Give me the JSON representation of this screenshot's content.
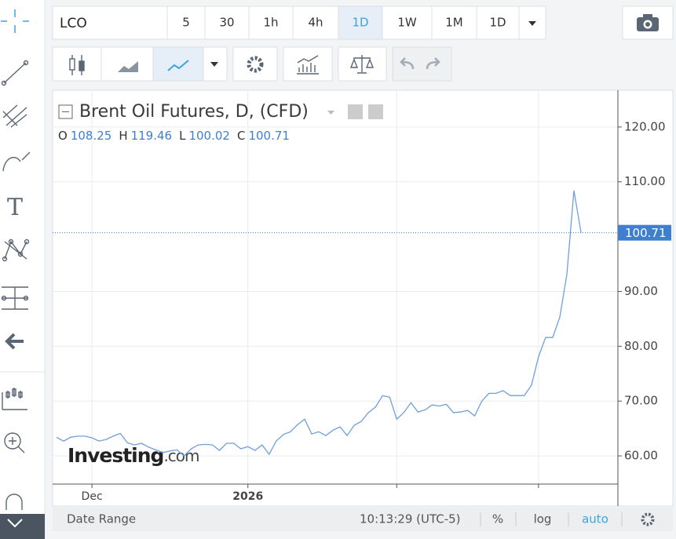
{
  "toolbar": {
    "symbol": "LCO",
    "intervals": [
      "5",
      "30",
      "1h",
      "4h",
      "1D",
      "1W",
      "1M",
      "1D"
    ],
    "active_interval": "1D"
  },
  "chart_data": {
    "type": "line",
    "title": "Brent Oil Futures, D, (CFD)",
    "ohlc": [
      {
        "label": "O",
        "value": 108.25
      },
      {
        "label": "H",
        "value": 119.46
      },
      {
        "label": "L",
        "value": 100.02
      },
      {
        "label": "C",
        "value": 100.71
      }
    ],
    "values": [
      63.4,
      62.7,
      63.4,
      63.6,
      63.6,
      63.3,
      62.7,
      63.0,
      63.6,
      64.1,
      62.4,
      62.0,
      62.3,
      61.6,
      61.1,
      60.6,
      60.9,
      61.1,
      60.0,
      61.3,
      62.0,
      62.1,
      62.0,
      61.0,
      62.3,
      62.3,
      61.3,
      61.7,
      61.0,
      62.0,
      60.3,
      62.7,
      63.9,
      64.4,
      65.7,
      66.7,
      64.0,
      64.4,
      63.7,
      64.7,
      65.3,
      63.7,
      65.6,
      66.3,
      67.9,
      68.9,
      71.0,
      70.7,
      66.7,
      67.9,
      69.7,
      68.0,
      68.4,
      69.3,
      69.1,
      69.4,
      67.9,
      68.0,
      68.3,
      67.3,
      70.0,
      71.4,
      71.4,
      71.9,
      71.0,
      71.0,
      71.0,
      72.9,
      78.1,
      81.6,
      81.6,
      85.3,
      93.1,
      108.4,
      100.71
    ],
    "color": "#6f9fdc",
    "last_price": 100.71,
    "ylim": [
      54.86,
      126.71
    ],
    "yticks": [
      {
        "value": 60,
        "label": "60.00"
      },
      {
        "value": 70,
        "label": "70.00"
      },
      {
        "value": 80,
        "label": "80.00"
      },
      {
        "value": 90,
        "label": "90.00"
      },
      {
        "value": 110,
        "label": "110.00"
      },
      {
        "value": 120,
        "label": "120.00"
      }
    ],
    "xlim": [
      -0.55,
      79.2
    ],
    "xticks": [
      {
        "value": 5,
        "label": "Dec"
      },
      {
        "value": 27,
        "label": "2026"
      },
      {
        "value": 48,
        "label": null
      },
      {
        "value": 68,
        "label": null
      }
    ],
    "grid": true,
    "watermark": [
      "Investing",
      ".com"
    ]
  },
  "footer": {
    "date_range": "Date Range",
    "time": "10:13:29 (UTC-5)",
    "percent": "%",
    "log": "log",
    "auto": "auto"
  }
}
